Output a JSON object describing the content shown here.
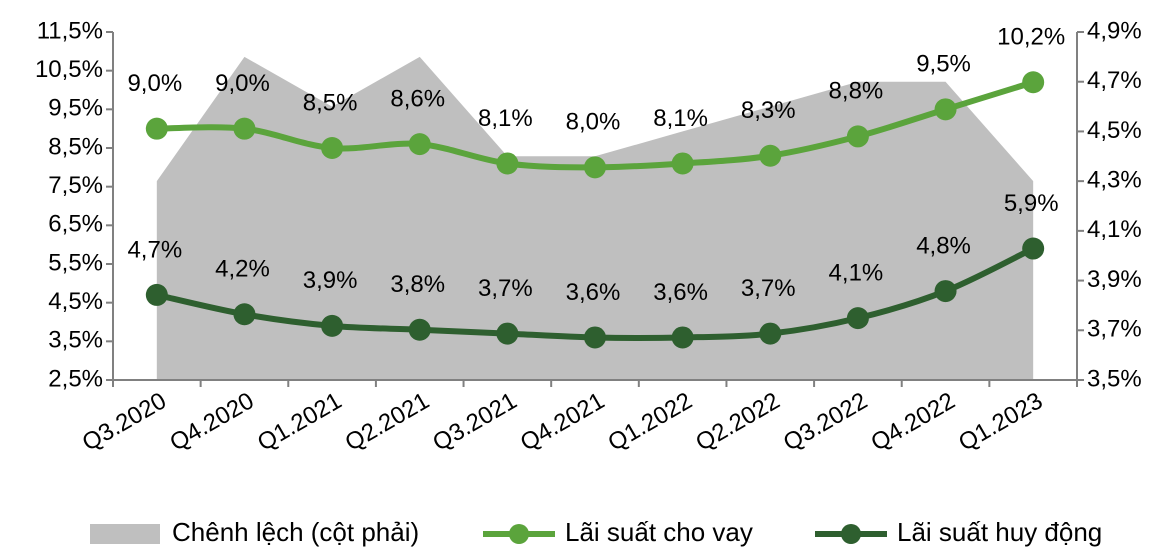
{
  "chart_data": {
    "type": "line",
    "categories": [
      "Q3.2020",
      "Q4.2020",
      "Q1.2021",
      "Q2.2021",
      "Q3.2021",
      "Q4.2021",
      "Q1.2022",
      "Q2.2022",
      "Q3.2022",
      "Q4.2022",
      "Q1.2023"
    ],
    "series": [
      {
        "name": "Chênh lệch (cột phải)",
        "type": "area",
        "axis": "y2",
        "color": "#bfbfbf",
        "values": [
          4.3,
          4.8,
          4.6,
          4.8,
          4.4,
          4.4,
          4.5,
          4.6,
          4.7,
          4.7,
          4.3
        ]
      },
      {
        "name": "Lãi suất cho vay",
        "type": "line",
        "color": "#5ba43c",
        "values": [
          9.0,
          9.0,
          8.5,
          8.6,
          8.1,
          8.0,
          8.1,
          8.3,
          8.8,
          9.5,
          10.2
        ],
        "value_labels": [
          "9,0%",
          "9,0%",
          "8,5%",
          "8,6%",
          "8,1%",
          "8,0%",
          "8,1%",
          "8,3%",
          "8,8%",
          "9,5%",
          "10,2%"
        ]
      },
      {
        "name": "Lãi suất huy động",
        "type": "line",
        "color": "#2e5f2f",
        "values": [
          4.7,
          4.2,
          3.9,
          3.8,
          3.7,
          3.6,
          3.6,
          3.7,
          4.1,
          4.8,
          5.9
        ],
        "value_labels": [
          "4,7%",
          "4,2%",
          "3,9%",
          "3,8%",
          "3,7%",
          "3,6%",
          "3,6%",
          "3,7%",
          "4,1%",
          "4,8%",
          "5,9%"
        ]
      }
    ],
    "ylim": [
      2.5,
      11.5
    ],
    "yticks": [
      {
        "value": 2.5,
        "label": "2,5%"
      },
      {
        "value": 3.5,
        "label": "3,5%"
      },
      {
        "value": 4.5,
        "label": "4,5%"
      },
      {
        "value": 5.5,
        "label": "5,5%"
      },
      {
        "value": 6.5,
        "label": "6,5%"
      },
      {
        "value": 7.5,
        "label": "7,5%"
      },
      {
        "value": 8.5,
        "label": "8,5%"
      },
      {
        "value": 9.5,
        "label": "9,5%"
      },
      {
        "value": 10.5,
        "label": "10,5%"
      },
      {
        "value": 11.5,
        "label": "11,5%"
      }
    ],
    "y2lim": [
      3.5,
      4.9
    ],
    "y2ticks": [
      {
        "value": 3.5,
        "label": "3,5%"
      },
      {
        "value": 3.7,
        "label": "3,7%"
      },
      {
        "value": 3.9,
        "label": "3,9%"
      },
      {
        "value": 4.1,
        "label": "4,1%"
      },
      {
        "value": 4.3,
        "label": "4,3%"
      },
      {
        "value": 4.5,
        "label": "4,5%"
      },
      {
        "value": 4.7,
        "label": "4,7%"
      },
      {
        "value": 4.9,
        "label": "4,9%"
      }
    ],
    "legend": "bottom",
    "grid": false
  }
}
